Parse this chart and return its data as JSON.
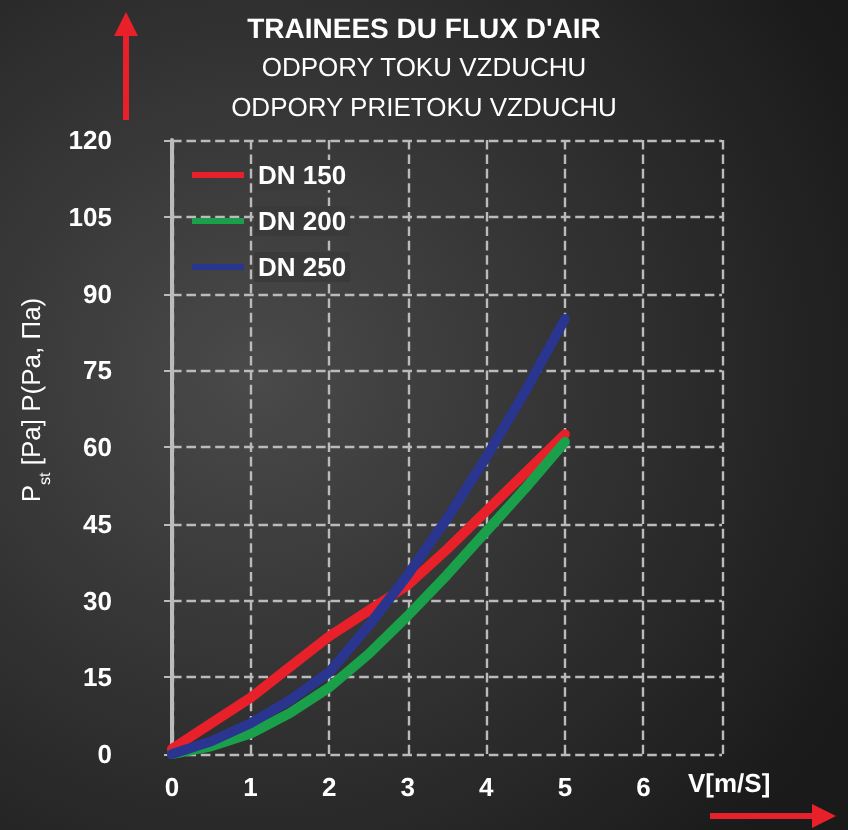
{
  "chart_data": {
    "type": "line",
    "title": "TRAINEES DU FLUX D'AIR",
    "subtitle": "ODPORY TOKU VZDUCHU\nODPORY PRIETOKU VZDUCHU",
    "xlabel": "V[m/S]",
    "ylabel": "P$_{st}$ [Pa] P(Pa, Па)",
    "x": [
      0,
      0.5,
      1,
      1.5,
      2,
      2.5,
      3,
      3.5,
      4,
      4.5,
      5
    ],
    "series": [
      {
        "name": "DN 150",
        "color": "#e8202a",
        "values": [
          1,
          6,
          11,
          17,
          23,
          28,
          33,
          40,
          47.5,
          55,
          62.5
        ]
      },
      {
        "name": "DN 200",
        "color": "#1aa04a",
        "values": [
          0,
          1.5,
          4,
          8,
          13,
          19.5,
          27,
          35,
          43.5,
          52,
          61
        ]
      },
      {
        "name": "DN 250",
        "color": "#2a3590",
        "values": [
          0,
          2.5,
          6,
          10.5,
          16,
          25,
          35,
          46,
          58,
          71,
          85
        ]
      }
    ],
    "xlim": [
      0,
      7
    ],
    "xticks": [
      0,
      1,
      2,
      3,
      4,
      5,
      6,
      {
        "value": 7,
        "label": null
      }
    ],
    "ylim": [
      0,
      120
    ],
    "yticks": [
      0,
      15,
      30,
      45,
      60,
      75,
      90,
      105,
      120
    ],
    "grid": true,
    "legend": "top left",
    "marker": "none",
    "line_style": "solid"
  }
}
